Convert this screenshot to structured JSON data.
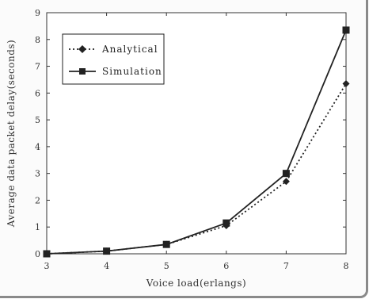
{
  "chart_data": {
    "type": "line",
    "xlabel": "Voice load(erlangs)",
    "ylabel": "Average data packet delay(seconds)",
    "xlim": [
      3,
      8
    ],
    "ylim": [
      0,
      9
    ],
    "x_ticks": [
      "3",
      "4",
      "5",
      "6",
      "7",
      "8"
    ],
    "y_ticks": [
      "0",
      "1",
      "2",
      "3",
      "4",
      "5",
      "6",
      "7",
      "8",
      "9"
    ],
    "legend_position": "top-left",
    "grid": false,
    "series": [
      {
        "name": "Analytical",
        "style": "dotted",
        "marker": "diamond",
        "x": [
          3,
          4,
          5,
          6,
          7,
          8
        ],
        "values": [
          0.0,
          0.1,
          0.35,
          1.05,
          2.7,
          6.35
        ]
      },
      {
        "name": "Simulation",
        "style": "solid",
        "marker": "square",
        "x": [
          3,
          4,
          5,
          6,
          7,
          8
        ],
        "values": [
          0.0,
          0.1,
          0.35,
          1.15,
          3.0,
          8.35
        ]
      }
    ]
  }
}
